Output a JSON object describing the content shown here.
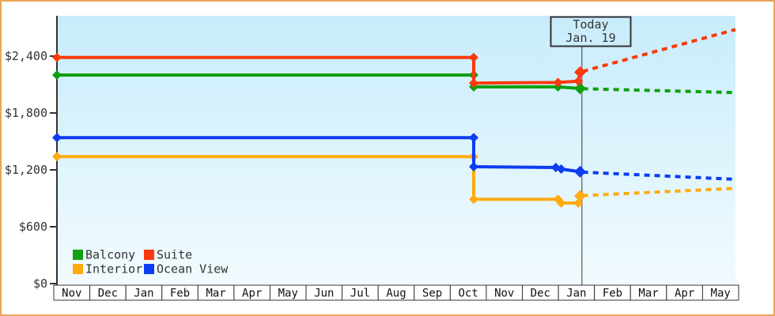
{
  "frame": {
    "border_color": "#e9a558",
    "background": "#ffffff"
  },
  "chart_data": {
    "type": "line",
    "title": "",
    "description": "Cabin price history (solid) and forecast (dotted) by cabin category",
    "x_axis": {
      "months": [
        "Nov",
        "Dec",
        "Jan",
        "Feb",
        "Mar",
        "Apr",
        "May",
        "Jun",
        "Jul",
        "Aug",
        "Sep",
        "Oct",
        "Nov",
        "Dec",
        "Jan",
        "Feb",
        "Mar",
        "Apr",
        "May"
      ]
    },
    "y_axis": {
      "ticks": [
        {
          "label": "$2,400",
          "value": 2400
        },
        {
          "label": "$1,800",
          "value": 1800
        },
        {
          "label": "$1,200",
          "value": 1200
        },
        {
          "label": "$600",
          "value": 600
        },
        {
          "label": "$0",
          "value": 0
        }
      ],
      "ylim": [
        0,
        2825
      ],
      "grid": false
    },
    "today": {
      "line1": "Today",
      "line2": "Jan. 19",
      "month_position": 14.7
    },
    "series": [
      {
        "name": "Balcony",
        "color": "#10a010",
        "history": [
          [
            0,
            2200
          ],
          [
            11.67,
            2200
          ],
          [
            11.67,
            2075
          ],
          [
            14.03,
            2075
          ],
          [
            14.65,
            2058
          ]
        ],
        "forecast": [
          [
            14.72,
            2056
          ],
          [
            19,
            2015
          ]
        ]
      },
      {
        "name": "Suite",
        "color": "#fa390d",
        "history": [
          [
            0,
            2385
          ],
          [
            11.67,
            2385
          ],
          [
            11.67,
            2115
          ],
          [
            14.03,
            2122
          ],
          [
            14.6,
            2135
          ],
          [
            14.65,
            2230
          ]
        ],
        "forecast": [
          [
            14.72,
            2238
          ],
          [
            19,
            2680
          ]
        ]
      },
      {
        "name": "Interior",
        "color": "#ffaa11",
        "history": [
          [
            0,
            1340
          ],
          [
            11.67,
            1340
          ],
          [
            11.67,
            890
          ],
          [
            14.03,
            890
          ],
          [
            14.12,
            850
          ],
          [
            14.6,
            850
          ],
          [
            14.65,
            925
          ]
        ],
        "forecast": [
          [
            14.72,
            928
          ],
          [
            19,
            1005
          ]
        ]
      },
      {
        "name": "Ocean View",
        "color": "#0c3df2",
        "history": [
          [
            0,
            1540
          ],
          [
            11.67,
            1540
          ],
          [
            11.67,
            1233
          ],
          [
            13.97,
            1225
          ],
          [
            14.12,
            1208
          ],
          [
            14.65,
            1180
          ]
        ],
        "forecast": [
          [
            14.72,
            1176
          ],
          [
            19,
            1100
          ]
        ]
      }
    ],
    "draw_order": [
      2,
      3,
      0,
      1
    ],
    "legend": {
      "position": "bottom-left",
      "columns": [
        [
          0,
          1
        ],
        [
          2,
          3
        ]
      ]
    },
    "colors": {
      "plot_bg_top": "#c8ecfb",
      "plot_bg_bottom": "#f2fbfe",
      "axis": "#333333",
      "today_line": "#555555",
      "label_text": "#333333"
    }
  }
}
